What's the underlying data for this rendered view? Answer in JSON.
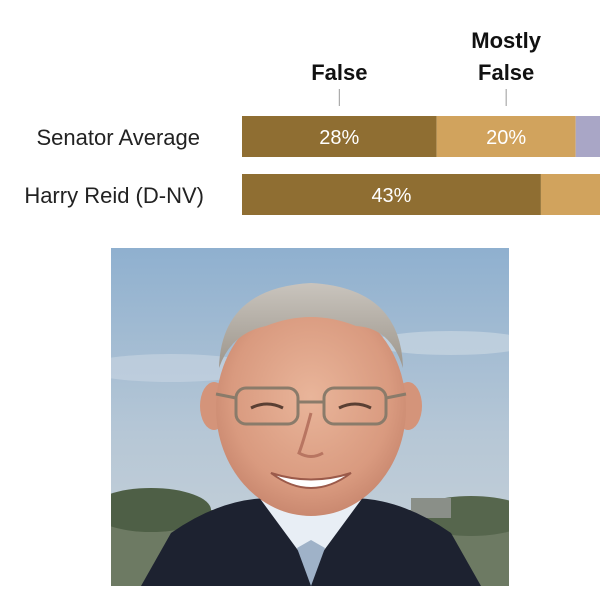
{
  "chart_data": {
    "type": "bar",
    "stacked": true,
    "orientation": "horizontal",
    "column_headers": [
      {
        "lines": [
          "False"
        ]
      },
      {
        "lines": [
          "Mostly",
          "False"
        ]
      }
    ],
    "categories": [
      "Senator Average",
      "Harry Reid (D-NV)"
    ],
    "series": [
      {
        "name": "False",
        "color": "#8f6e32",
        "values": [
          28,
          43
        ]
      },
      {
        "name": "Mostly False",
        "color": "#d1a35d",
        "values": [
          20,
          10
        ]
      },
      {
        "name": "",
        "color": "#a9a6c6",
        "values": [
          5,
          0
        ]
      }
    ],
    "value_labels": [
      [
        "28%",
        "20%",
        ""
      ],
      [
        "43%",
        "",
        ""
      ]
    ],
    "xlim": [
      0,
      51.5
    ],
    "grid": false,
    "legend": "none"
  },
  "photo": {
    "subject": "portrait photo of Harry Reid"
  }
}
